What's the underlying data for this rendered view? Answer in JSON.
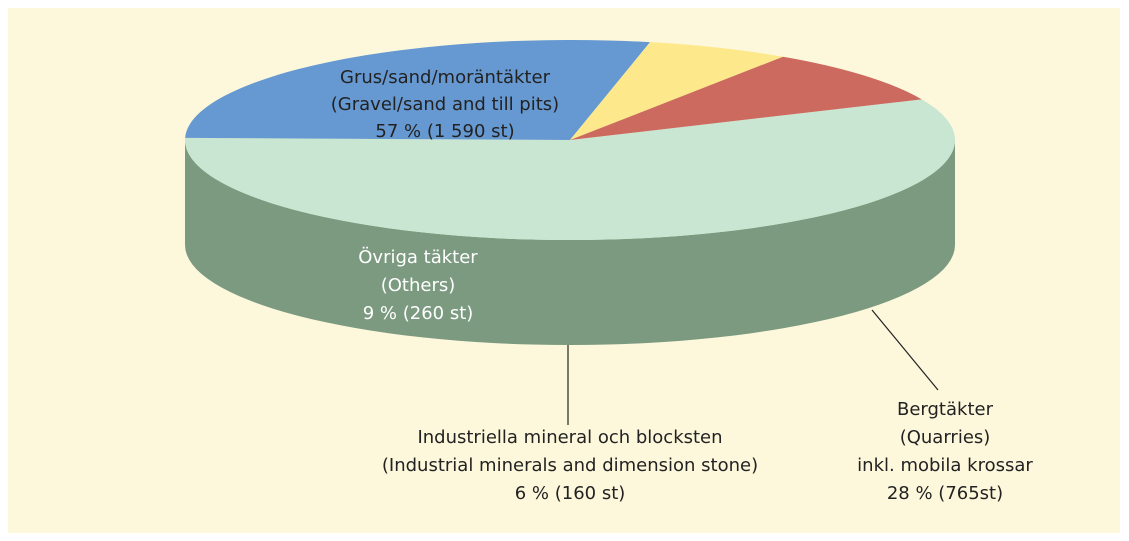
{
  "chart_data": {
    "type": "pie3d",
    "categories": [
      [
        "Grus/sand/moräntäkter",
        "(Gravel/sand and till pits)"
      ],
      [
        "Bergtäkter",
        "(Quarries)",
        "inkl. mobila krossar"
      ],
      [
        "Industriella mineral och blocksten",
        "(Industrial minerals and dimension stone)"
      ],
      [
        "Övriga täkter",
        "(Others)"
      ]
    ],
    "values": [
      57,
      28,
      6,
      9
    ],
    "value_labels": [
      "57 %  (1 590 st)",
      "28 % (765st)",
      "6 % (160 st)",
      "9 % (260 st)"
    ],
    "colors": [
      "#c8e6d2",
      "#6699d1",
      "#fde98c",
      "#cc6a5f"
    ],
    "side_colors": [
      "#7b9a80",
      "#1f6aa6",
      "#cfc42b",
      "#a0524a"
    ]
  }
}
